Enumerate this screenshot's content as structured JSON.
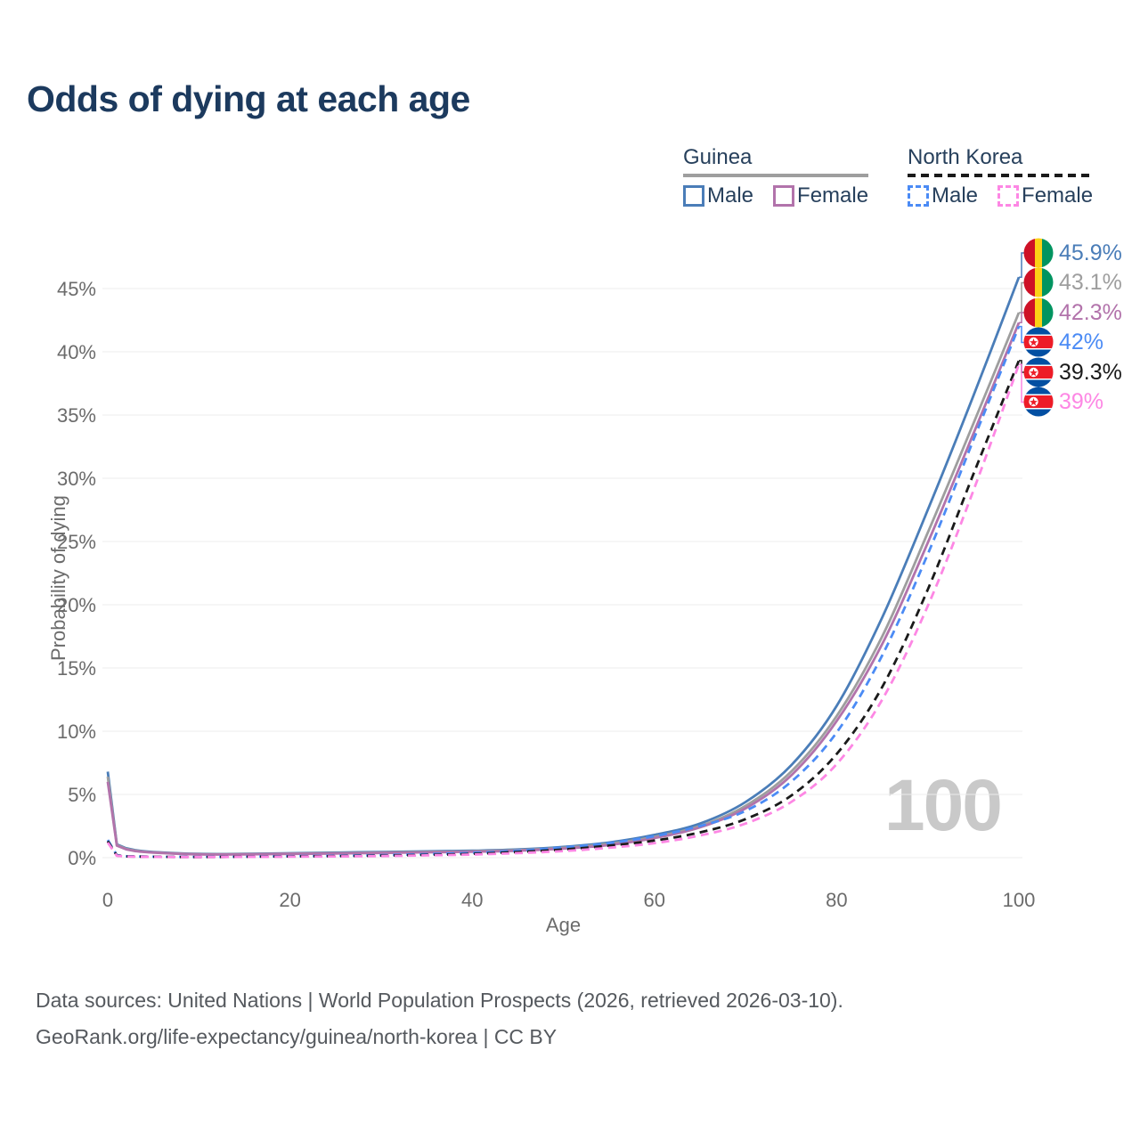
{
  "title": "Odds of dying at each age",
  "legend": {
    "groups": [
      {
        "label": "Guinea",
        "line_style": "solid",
        "underline_color": "#9e9e9e",
        "items": [
          {
            "label": "Male",
            "color": "#4a7db8"
          },
          {
            "label": "Female",
            "color": "#b273ab"
          }
        ]
      },
      {
        "label": "North Korea",
        "line_style": "dashed",
        "underline_color": "#1a1a1a",
        "items": [
          {
            "label": "Male",
            "color": "#4b8bf5"
          },
          {
            "label": "Female",
            "color": "#fd87e4"
          }
        ]
      }
    ]
  },
  "chart_data": {
    "type": "line",
    "title": "Odds of dying at each age",
    "xlabel": "Age",
    "ylabel": "Probability of dying",
    "xlim": [
      0,
      100
    ],
    "ylim": [
      0,
      47
    ],
    "grid": true,
    "legend_position": "top-right",
    "x_tick_values": [
      0,
      20,
      40,
      60,
      80,
      100
    ],
    "x_tick_labels": [
      "0",
      "20",
      "40",
      "60",
      "80",
      "100"
    ],
    "y_tick_values": [
      0,
      5,
      10,
      15,
      20,
      25,
      30,
      35,
      40,
      45
    ],
    "y_tick_labels": [
      "0%",
      "5%",
      "10%",
      "15%",
      "20%",
      "25%",
      "30%",
      "35%",
      "40%",
      "45%"
    ],
    "watermark": "100",
    "x": [
      0,
      1,
      2,
      3,
      5,
      10,
      15,
      20,
      25,
      30,
      35,
      40,
      45,
      50,
      55,
      60,
      65,
      70,
      75,
      80,
      85,
      90,
      95,
      100
    ],
    "series": [
      {
        "id": "guinea-male",
        "name": "Guinea Male",
        "color": "#4a7db8",
        "dash": "solid",
        "end_label": "45.9%",
        "flag": "guinea",
        "values": [
          6.8,
          1.05,
          0.75,
          0.6,
          0.45,
          0.3,
          0.3,
          0.35,
          0.4,
          0.45,
          0.5,
          0.55,
          0.65,
          0.85,
          1.2,
          1.8,
          2.7,
          4.4,
          7.3,
          12.0,
          19.0,
          27.5,
          36.5,
          45.9
        ]
      },
      {
        "id": "guinea-both-sexes",
        "name": "Guinea Both sexes",
        "color": "#9e9e9e",
        "dash": "solid",
        "end_label": "43.1%",
        "flag": "guinea",
        "values": [
          6.4,
          1.0,
          0.7,
          0.56,
          0.42,
          0.28,
          0.28,
          0.32,
          0.36,
          0.4,
          0.45,
          0.5,
          0.6,
          0.78,
          1.1,
          1.65,
          2.5,
          4.1,
          6.8,
          11.2,
          17.5,
          25.7,
          34.3,
          43.1
        ]
      },
      {
        "id": "guinea-female",
        "name": "Guinea Female",
        "color": "#b273ab",
        "dash": "solid",
        "end_label": "42.3%",
        "flag": "guinea",
        "values": [
          6.0,
          0.95,
          0.66,
          0.52,
          0.4,
          0.26,
          0.26,
          0.3,
          0.33,
          0.37,
          0.42,
          0.47,
          0.55,
          0.72,
          1.0,
          1.55,
          2.4,
          3.9,
          6.5,
          10.8,
          16.9,
          24.9,
          33.5,
          42.3
        ]
      },
      {
        "id": "north-korea-male",
        "name": "North Korea Male",
        "color": "#4b8bf5",
        "dash": "dashed",
        "end_label": "42%",
        "flag": "north-korea",
        "values": [
          1.4,
          0.2,
          0.12,
          0.1,
          0.08,
          0.06,
          0.08,
          0.12,
          0.15,
          0.2,
          0.28,
          0.38,
          0.55,
          0.8,
          1.15,
          1.7,
          2.5,
          3.7,
          6.0,
          9.9,
          16.0,
          24.0,
          33.0,
          42.0
        ]
      },
      {
        "id": "north-korea-both-sexes",
        "name": "North Korea Both sexes",
        "color": "#1a1a1a",
        "dash": "dashed",
        "end_label": "39.3%",
        "flag": "north-korea",
        "values": [
          1.3,
          0.17,
          0.1,
          0.09,
          0.07,
          0.05,
          0.07,
          0.1,
          0.12,
          0.16,
          0.22,
          0.3,
          0.45,
          0.65,
          0.95,
          1.35,
          2.0,
          3.05,
          4.9,
          8.2,
          13.5,
          21.2,
          30.3,
          39.3
        ]
      },
      {
        "id": "north-korea-female",
        "name": "North Korea Female",
        "color": "#fd87e4",
        "dash": "dashed",
        "end_label": "39%",
        "flag": "north-korea",
        "values": [
          1.2,
          0.15,
          0.09,
          0.08,
          0.06,
          0.05,
          0.06,
          0.08,
          0.1,
          0.13,
          0.18,
          0.25,
          0.36,
          0.52,
          0.78,
          1.15,
          1.75,
          2.7,
          4.4,
          7.4,
          12.5,
          19.9,
          29.0,
          39.0
        ]
      }
    ],
    "flag_colors": {
      "guinea": [
        "#CE1126",
        "#FCD116",
        "#009460"
      ],
      "north_korea": [
        "#024FA2",
        "#FFFFFF",
        "#ED1C27"
      ]
    }
  },
  "footer": {
    "line1": "Data sources: United Nations | World Population Prospects (2026, retrieved 2026-03-10).",
    "line2": "GeoRank.org/life-expectancy/guinea/north-korea | CC BY"
  }
}
